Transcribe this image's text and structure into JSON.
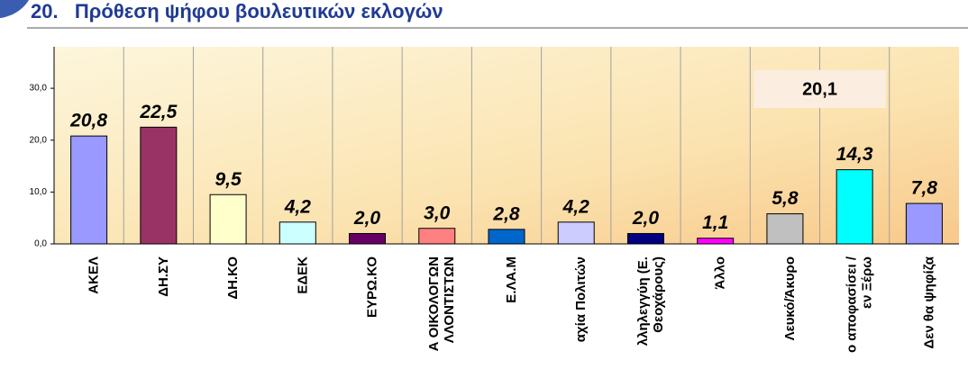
{
  "chart_data": {
    "type": "bar",
    "title": "20.   Πρόθεση ψήφου βουλευτικών εκλογών",
    "categories": [
      [
        "ΑΚΕΛ"
      ],
      [
        "ΔΗ.ΣΥ"
      ],
      [
        "ΔΗ.ΚΟ"
      ],
      [
        "ΕΔΕΚ"
      ],
      [
        "ΕΥΡΩ.ΚΟ"
      ],
      [
        "Α ΟΙΚΟΛΟΓΩΝ",
        "ΛΛΟΝΤΙΣΤΩΝ"
      ],
      [
        "Ε.ΛΑ.Μ"
      ],
      [
        "αχία Πολιτών"
      ],
      [
        "λληλεγγύη (Ε.",
        "Θεοχάρους)"
      ],
      [
        "Άλλο"
      ],
      [
        "Λευκό/Άκυρο"
      ],
      [
        "ο αποφασίσει /",
        "εν Ξέρω"
      ],
      [
        "Δεν θα ψηφίζα"
      ]
    ],
    "values": [
      20.8,
      22.5,
      9.5,
      4.2,
      2.0,
      3.0,
      2.8,
      4.2,
      2.0,
      1.1,
      5.8,
      14.3,
      7.8
    ],
    "value_labels": [
      "20,8",
      "22,5",
      "9,5",
      "4,2",
      "2,0",
      "3,0",
      "2,8",
      "4,2",
      "2,0",
      "1,1",
      "5,8",
      "14,3",
      "7,8"
    ],
    "colors": [
      "#9999ff",
      "#993366",
      "#ffffcc",
      "#ccffff",
      "#660066",
      "#ff8080",
      "#0066cc",
      "#ccccff",
      "#000080",
      "#ff00ff",
      "#c0c0c0",
      "#00ffff",
      "#9999ff"
    ],
    "ylim": [
      0,
      38
    ],
    "yticks": [
      {
        "value": 0,
        "label": "0,0"
      },
      {
        "value": 10,
        "label": "10,0"
      },
      {
        "value": 20,
        "label": "20,0"
      },
      {
        "value": 30,
        "label": "30,0"
      }
    ],
    "grid": true,
    "annotation": "20,1"
  }
}
